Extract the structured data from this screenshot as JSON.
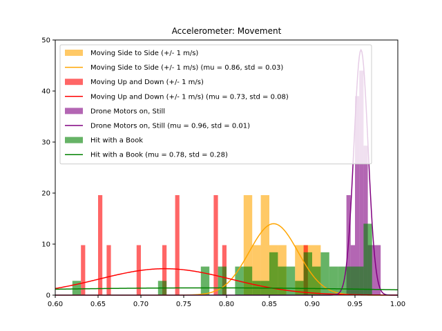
{
  "chart_data": {
    "type": "histogram",
    "title": "Accelerometer: Movement",
    "xlabel": "",
    "ylabel": "",
    "xlim": [
      0.6,
      1.0
    ],
    "ylim": [
      0,
      50
    ],
    "x_ticks": [
      "0.60",
      "0.65",
      "0.70",
      "0.75",
      "0.80",
      "0.85",
      "0.90",
      "0.95",
      "1.00"
    ],
    "y_ticks": [
      "0",
      "10",
      "20",
      "30",
      "40",
      "50"
    ],
    "grid": false,
    "legend_position": "top-right",
    "series": [
      {
        "name": "Moving Side to Side (+/- 1 m/s)",
        "kind": "histogram",
        "color": "#ffa500",
        "opacity": 0.6,
        "bin_width": 0.01,
        "bins": [
          {
            "x0": 0.82,
            "height": 19.6
          },
          {
            "x0": 0.83,
            "height": 9.8
          },
          {
            "x0": 0.84,
            "height": 19.6
          },
          {
            "x0": 0.85,
            "height": 9.8
          },
          {
            "x0": 0.86,
            "height": 9.8
          },
          {
            "x0": 0.88,
            "height": 9.8
          },
          {
            "x0": 0.89,
            "height": 9.8
          },
          {
            "x0": 0.9,
            "height": 9.8
          }
        ]
      },
      {
        "name": "Moving Side to Side (+/- 1 m/s) (mu = 0.86,  std = 0.03)",
        "kind": "normal",
        "color": "#ffa500",
        "mu": 0.855,
        "std": 0.0285
      },
      {
        "name": "Moving Up and Down (+/- 1 m/s)",
        "kind": "histogram",
        "color": "#ff0000",
        "opacity": 0.6,
        "bin_width": 0.005,
        "bins": [
          {
            "x0": 0.63,
            "height": 9.8
          },
          {
            "x0": 0.65,
            "height": 19.6
          },
          {
            "x0": 0.66,
            "height": 9.8
          },
          {
            "x0": 0.695,
            "height": 9.8
          },
          {
            "x0": 0.725,
            "height": 9.8
          },
          {
            "x0": 0.74,
            "height": 19.6
          },
          {
            "x0": 0.785,
            "height": 19.6
          },
          {
            "x0": 0.795,
            "height": 9.8
          },
          {
            "x0": 0.89,
            "height": 9.8
          }
        ]
      },
      {
        "name": "Moving Up and Down (+/- 1 m/s) (mu = 0.73,  std = 0.08)",
        "kind": "normal",
        "color": "#ff0000",
        "mu": 0.728,
        "std": 0.077
      },
      {
        "name": "Drone Motors on, Still",
        "kind": "histogram",
        "color": "#800080",
        "opacity": 0.6,
        "bin_width": 0.005,
        "bins": [
          {
            "x0": 0.94,
            "height": 19.6
          },
          {
            "x0": 0.945,
            "height": 9.8
          },
          {
            "x0": 0.95,
            "height": 39.0
          },
          {
            "x0": 0.955,
            "height": 44.0
          },
          {
            "x0": 0.96,
            "height": 29.3
          },
          {
            "x0": 0.965,
            "height": 9.8
          },
          {
            "x0": 0.97,
            "height": 9.8
          },
          {
            "x0": 0.975,
            "height": 9.8
          }
        ]
      },
      {
        "name": "Drone Motors on, Still (mu = 0.96,  std = 0.01)",
        "kind": "normal",
        "color": "#800080",
        "mu": 0.957,
        "std": 0.0083
      },
      {
        "name": "Hit with a Book",
        "kind": "histogram",
        "color": "#008000",
        "opacity": 0.6,
        "bin_width": 0.01,
        "bins": [
          {
            "x0": 0.62,
            "height": 2.8
          },
          {
            "x0": 0.72,
            "height": 2.8
          },
          {
            "x0": 0.77,
            "height": 5.6
          },
          {
            "x0": 0.79,
            "height": 5.6
          },
          {
            "x0": 0.81,
            "height": 5.6
          },
          {
            "x0": 0.82,
            "height": 5.6
          },
          {
            "x0": 0.83,
            "height": 2.8
          },
          {
            "x0": 0.84,
            "height": 2.8
          },
          {
            "x0": 0.85,
            "height": 8.4
          },
          {
            "x0": 0.86,
            "height": 5.6
          },
          {
            "x0": 0.87,
            "height": 5.6
          },
          {
            "x0": 0.88,
            "height": 2.8
          },
          {
            "x0": 0.89,
            "height": 8.4
          },
          {
            "x0": 0.9,
            "height": 5.6
          },
          {
            "x0": 0.91,
            "height": 8.4
          },
          {
            "x0": 0.92,
            "height": 5.6
          },
          {
            "x0": 0.93,
            "height": 5.6
          },
          {
            "x0": 0.94,
            "height": 5.6
          },
          {
            "x0": 0.95,
            "height": 5.6
          },
          {
            "x0": 0.96,
            "height": 14.0
          }
        ]
      },
      {
        "name": "Hit with a Book (mu = 0.78,  std = 0.28)",
        "kind": "normal",
        "color": "#008000",
        "mu": 0.78,
        "std": 0.28
      }
    ]
  }
}
